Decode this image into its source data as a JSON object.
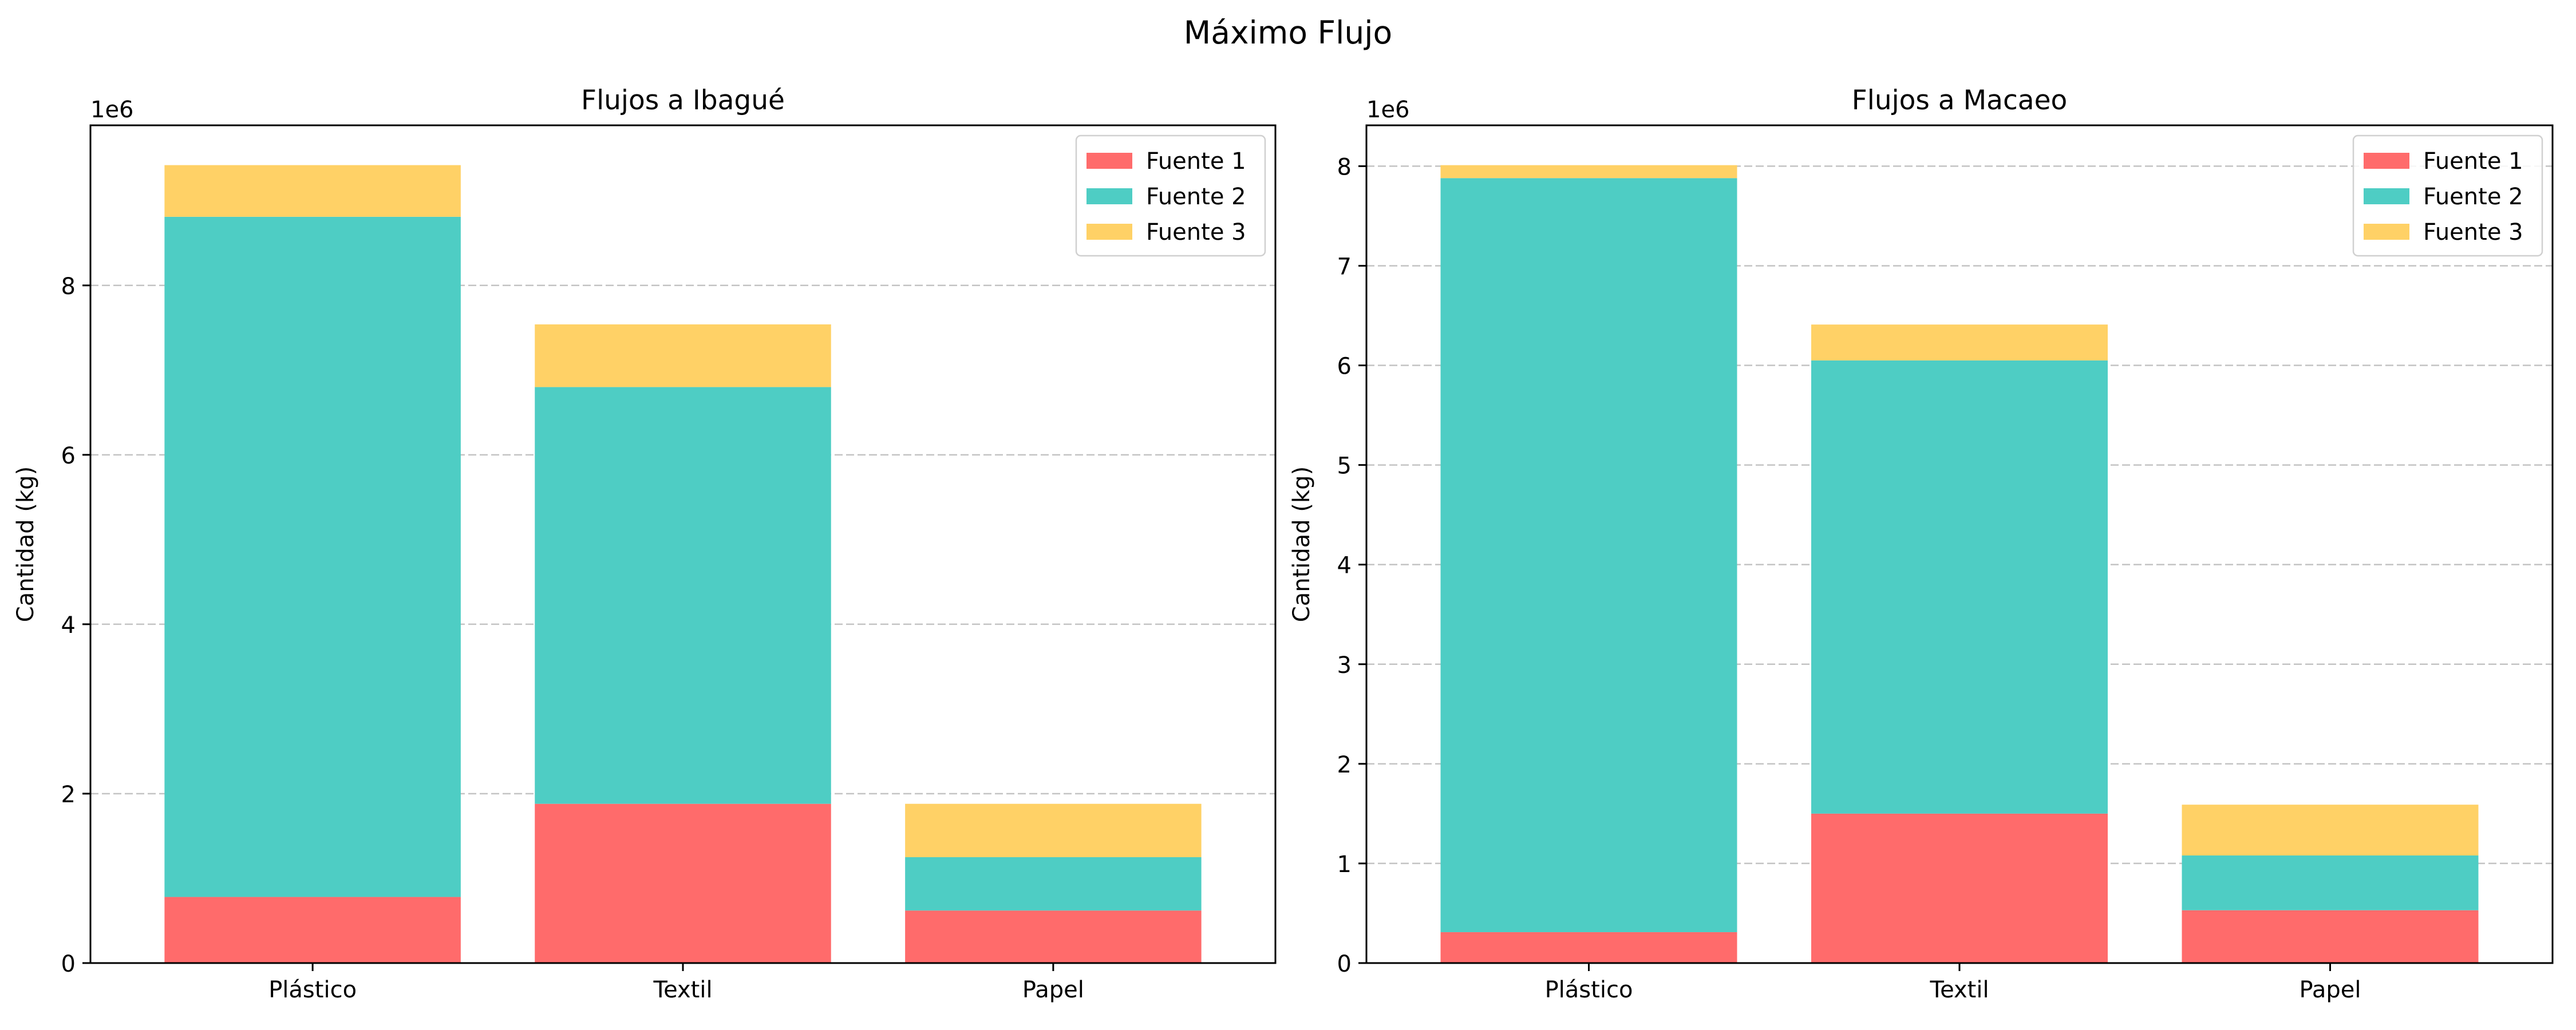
{
  "figure": {
    "suptitle": "Máximo Flujo"
  },
  "chart_data": [
    {
      "type": "bar",
      "stacked": true,
      "title": "Flujos a Ibagué",
      "xlabel": "",
      "ylabel": "Cantidad (kg)",
      "y_offset_label": "1e6",
      "categories": [
        "Plástico",
        "Textil",
        "Papel"
      ],
      "series": [
        {
          "name": "Fuente 1",
          "color": "#ff6b6b",
          "values": [
            780000,
            1880000,
            620000
          ]
        },
        {
          "name": "Fuente 2",
          "color": "#4ecdc4",
          "values": [
            8030000,
            4920000,
            630000
          ]
        },
        {
          "name": "Fuente 3",
          "color": "#ffd166",
          "values": [
            610000,
            740000,
            630000
          ]
        }
      ],
      "ylim": [
        0,
        9890000
      ],
      "yticks": [
        0,
        2000000,
        4000000,
        6000000,
        8000000
      ],
      "ytick_labels": [
        "0",
        "2",
        "4",
        "6",
        "8"
      ],
      "grid": "y-dashed",
      "legend": "top-right"
    },
    {
      "type": "bar",
      "stacked": true,
      "title": "Flujos a Macaeo",
      "xlabel": "",
      "ylabel": "Cantidad (kg)",
      "y_offset_label": "1e6",
      "categories": [
        "Plástico",
        "Textil",
        "Papel"
      ],
      "series": [
        {
          "name": "Fuente 1",
          "color": "#ff6b6b",
          "values": [
            310000,
            1500000,
            530000
          ]
        },
        {
          "name": "Fuente 2",
          "color": "#4ecdc4",
          "values": [
            7570000,
            4550000,
            550000
          ]
        },
        {
          "name": "Fuente 3",
          "color": "#ffd166",
          "values": [
            130000,
            360000,
            510000
          ]
        }
      ],
      "ylim": [
        0,
        8410000
      ],
      "yticks": [
        0,
        1000000,
        2000000,
        3000000,
        4000000,
        5000000,
        6000000,
        7000000,
        8000000
      ],
      "ytick_labels": [
        "0",
        "1",
        "2",
        "3",
        "4",
        "5",
        "6",
        "7",
        "8"
      ],
      "grid": "y-dashed",
      "legend": "top-right"
    }
  ]
}
